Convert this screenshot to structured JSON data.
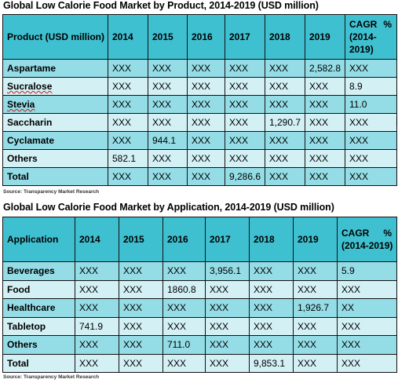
{
  "product": {
    "title": "Global Low Calorie Food Market by Product, 2014-2019 (USD million)",
    "headers": [
      "Product (USD million)",
      "2014",
      "2015",
      "2016",
      "2017",
      "2018",
      "2019"
    ],
    "cagr_header": "CAGR",
    "cagr_pct": "%",
    "cagr_years": "(2014-2019)",
    "rows": [
      {
        "name": "Aspartame",
        "cells": [
          "XXX",
          "XXX",
          "XXX",
          "XXX",
          "XXX",
          "2,582.8",
          "XXX"
        ]
      },
      {
        "name": "Sucralose",
        "cells": [
          "XXX",
          "XXX",
          "XXX",
          "XXX",
          "XXX",
          "XXX",
          "8.9"
        ]
      },
      {
        "name": "Stevia",
        "cells": [
          "XXX",
          "XXX",
          "XXX",
          "XXX",
          "XXX",
          "XXX",
          "11.0"
        ]
      },
      {
        "name": "Saccharin",
        "cells": [
          "XXX",
          "XXX",
          "XXX",
          "XXX",
          "1,290.7",
          "XXX",
          "XXX"
        ]
      },
      {
        "name": "Cyclamate",
        "cells": [
          "XXX",
          "944.1",
          "XXX",
          "XXX",
          "XXX",
          "XXX",
          "XXX"
        ]
      },
      {
        "name": "Others",
        "cells": [
          "582.1",
          "XXX",
          "XXX",
          "XXX",
          "XXX",
          "XXX",
          "XXX"
        ]
      },
      {
        "name": "Total",
        "cells": [
          "XXX",
          "XXX",
          "XXX",
          "9,286.6",
          "XXX",
          "XXX",
          "XXX"
        ]
      }
    ],
    "source": "Source: Transparency Market Research"
  },
  "application": {
    "title": "Global Low Calorie Food Market by Application, 2014-2019 (USD million)",
    "headers": [
      "Application",
      "2014",
      "2015",
      "2016",
      "2017",
      "2018",
      "2019"
    ],
    "cagr_header": "CAGR",
    "cagr_pct": "%",
    "cagr_years": "(2014-2019)",
    "rows": [
      {
        "name": "Beverages",
        "cells": [
          "XXX",
          "XXX",
          "XXX",
          "3,956.1",
          "XXX",
          "XXX",
          "5.9"
        ]
      },
      {
        "name": "Food",
        "cells": [
          "XXX",
          "XXX",
          "1860.8",
          "XXX",
          "XXX",
          "XXX",
          "XXX"
        ]
      },
      {
        "name": "Healthcare",
        "cells": [
          "XXX",
          "XXX",
          "XXX",
          "XXX",
          "XXX",
          "1,926.7",
          "XX"
        ]
      },
      {
        "name": "Tabletop",
        "cells": [
          "741.9",
          "XXX",
          "XXX",
          "XXX",
          "XXX",
          "XXX",
          "XXX"
        ]
      },
      {
        "name": "Others",
        "cells": [
          "XXX",
          "XXX",
          "711.0",
          "XXX",
          "XXX",
          "XXX",
          "XXX"
        ]
      },
      {
        "name": "Total",
        "cells": [
          "XXX",
          "XXX",
          "XXX",
          "XXX",
          "9,853.1",
          "XXX",
          "XXX"
        ]
      }
    ],
    "source": "Source: Transparency Market Research"
  }
}
